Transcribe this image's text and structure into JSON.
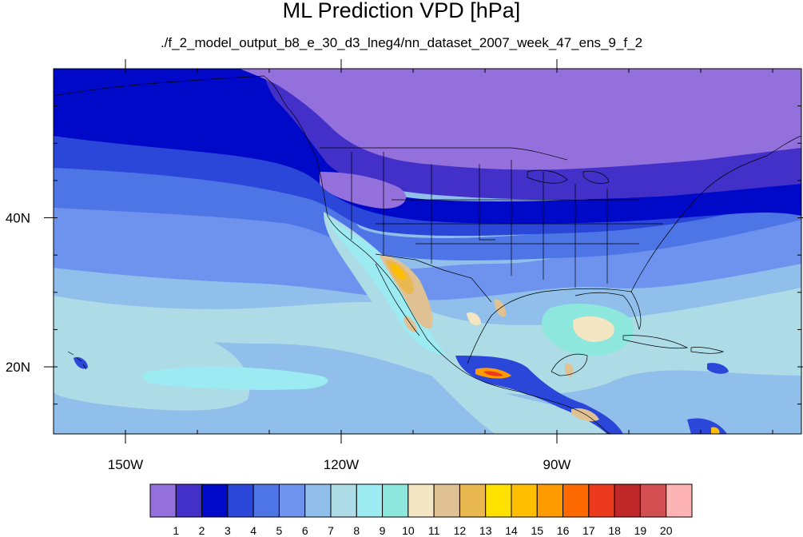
{
  "title": "ML Prediction VPD [hPa]",
  "subtitle": "./f_2_model_output_b8_e_30_d3_lneg4/nn_dataset_2007_week_47_ens_9_f_2",
  "map": {
    "lat_ticks": [
      {
        "value": 40,
        "label": "40N"
      },
      {
        "value": 20,
        "label": "20N"
      }
    ],
    "lon_ticks": [
      {
        "value": -150,
        "label": "150W"
      },
      {
        "value": -120,
        "label": "120W"
      },
      {
        "value": -90,
        "label": "90W"
      }
    ],
    "lon_range": [
      -160,
      -56
    ],
    "lat_range": [
      11,
      60
    ]
  },
  "colorbar": {
    "colors": [
      "#9370db",
      "#4230c8",
      "#0009c8",
      "#2a47d9",
      "#4e75e6",
      "#6e93ee",
      "#8fbfea",
      "#aedce6",
      "#9cebf2",
      "#8ee7dc",
      "#f5e6c3",
      "#e0c193",
      "#e9b850",
      "#ffe100",
      "#ffbf00",
      "#ff9a00",
      "#ff6a00",
      "#eb3a1e",
      "#be2628",
      "#d24e50",
      "#ffb4b4"
    ],
    "labels": [
      "1",
      "2",
      "3",
      "4",
      "5",
      "6",
      "7",
      "8",
      "9",
      "10",
      "11",
      "12",
      "13",
      "14",
      "15",
      "16",
      "17",
      "18",
      "19",
      "20"
    ]
  }
}
